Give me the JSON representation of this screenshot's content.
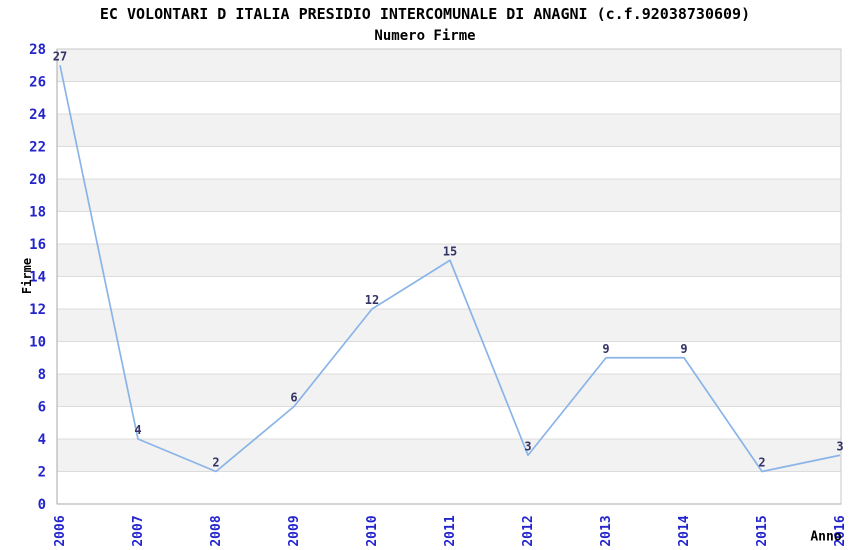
{
  "chart_data": {
    "type": "line",
    "title": "EC VOLONTARI D ITALIA PRESIDIO INTERCOMUNALE DI ANAGNI (c.f.92038730609)",
    "subtitle": "Numero Firme",
    "xlabel": "Anno",
    "ylabel": "Firme",
    "categories": [
      "2006",
      "2007",
      "2008",
      "2009",
      "2010",
      "2011",
      "2012",
      "2013",
      "2014",
      "2015",
      "2016"
    ],
    "values": [
      27,
      4,
      2,
      6,
      12,
      15,
      3,
      9,
      9,
      2,
      3
    ],
    "ylim": [
      0,
      28
    ],
    "ytick_step": 2,
    "grid": true,
    "legend_position": "none",
    "colors": {
      "line": "#8ab4e8",
      "tick_label": "#2424cc",
      "value_label": "#333366",
      "band": "#f2f2f2",
      "band_alt": "#ffffff",
      "gridline": "#dcdcdc",
      "plot_border": "#c9c9c9",
      "axis_line": "#aaaaaa",
      "text": "#000000",
      "background": "#ffffff"
    }
  }
}
